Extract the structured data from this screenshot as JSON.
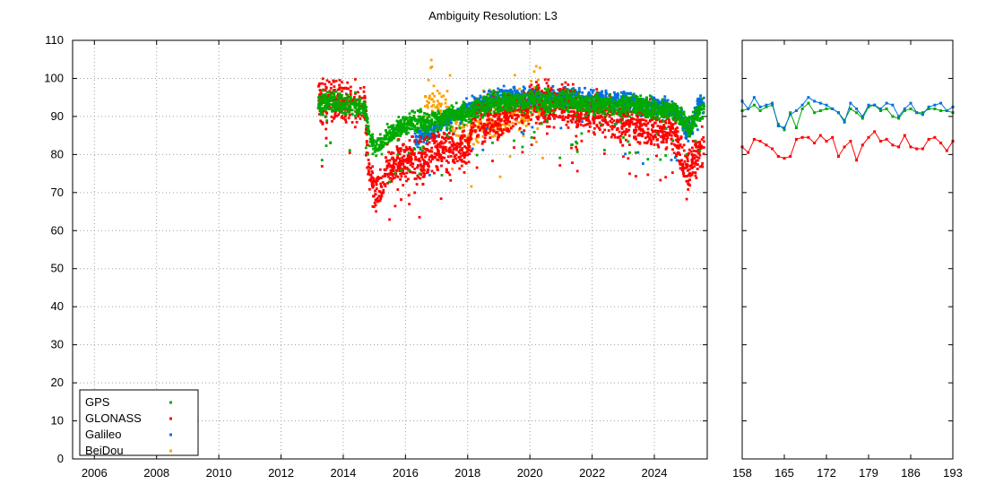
{
  "chart_data": [
    {
      "type": "scatter",
      "title": "Ambiguity Resolution: L3",
      "xlabel": "",
      "ylabel": "",
      "xlim": [
        2005.3,
        2025.7
      ],
      "ylim": [
        0,
        110
      ],
      "x_ticks": [
        2006,
        2008,
        2010,
        2012,
        2014,
        2016,
        2018,
        2020,
        2022,
        2024
      ],
      "y_ticks": [
        0,
        10,
        20,
        30,
        40,
        50,
        60,
        70,
        80,
        90,
        100,
        110
      ],
      "grid": true,
      "legend_position": "bottom-left",
      "series": [
        {
          "name": "GPS",
          "color": "#00aa00",
          "profile": [
            [
              2013.2,
              93
            ],
            [
              2013.6,
              94
            ],
            [
              2014.0,
              93
            ],
            [
              2014.4,
              93
            ],
            [
              2014.7,
              92
            ],
            [
              2014.85,
              84
            ],
            [
              2015.0,
              82
            ],
            [
              2015.3,
              84
            ],
            [
              2015.6,
              86
            ],
            [
              2016.0,
              88
            ],
            [
              2016.4,
              89
            ],
            [
              2016.7,
              88
            ],
            [
              2017.0,
              89
            ],
            [
              2017.5,
              90
            ],
            [
              2018.0,
              91
            ],
            [
              2018.5,
              93
            ],
            [
              2019.0,
              94
            ],
            [
              2019.5,
              94
            ],
            [
              2020.0,
              94
            ],
            [
              2020.5,
              94
            ],
            [
              2021.0,
              94
            ],
            [
              2021.5,
              94
            ],
            [
              2022.0,
              93
            ],
            [
              2022.5,
              93
            ],
            [
              2023.0,
              93
            ],
            [
              2023.5,
              93
            ],
            [
              2024.0,
              92
            ],
            [
              2024.5,
              92
            ],
            [
              2024.8,
              91
            ],
            [
              2025.0,
              88
            ],
            [
              2025.2,
              88
            ],
            [
              2025.4,
              91
            ],
            [
              2025.6,
              92
            ]
          ]
        },
        {
          "name": "GLONASS",
          "color": "#ff0000",
          "profile": [
            [
              2013.2,
              94
            ],
            [
              2013.6,
              94
            ],
            [
              2014.0,
              94
            ],
            [
              2014.4,
              93
            ],
            [
              2014.7,
              93
            ],
            [
              2014.8,
              76
            ],
            [
              2015.0,
              70
            ],
            [
              2015.2,
              72
            ],
            [
              2015.4,
              76
            ],
            [
              2015.8,
              78
            ],
            [
              2016.2,
              79
            ],
            [
              2016.5,
              78
            ],
            [
              2016.8,
              80
            ],
            [
              2017.2,
              82
            ],
            [
              2017.6,
              80
            ],
            [
              2018.0,
              82
            ],
            [
              2018.2,
              90
            ],
            [
              2018.6,
              89
            ],
            [
              2019.0,
              90
            ],
            [
              2019.5,
              92
            ],
            [
              2020.0,
              93
            ],
            [
              2020.5,
              93
            ],
            [
              2021.0,
              93
            ],
            [
              2021.5,
              92
            ],
            [
              2022.0,
              91
            ],
            [
              2022.5,
              90
            ],
            [
              2023.0,
              89
            ],
            [
              2023.5,
              88
            ],
            [
              2024.0,
              88
            ],
            [
              2024.4,
              87
            ],
            [
              2024.7,
              85
            ],
            [
              2025.0,
              76
            ],
            [
              2025.2,
              78
            ],
            [
              2025.4,
              80
            ],
            [
              2025.6,
              82
            ]
          ]
        },
        {
          "name": "Galileo",
          "color": "#0070e0",
          "profile": [
            [
              2016.3,
              84
            ],
            [
              2016.6,
              85
            ],
            [
              2017.0,
              87
            ],
            [
              2017.4,
              90
            ],
            [
              2017.8,
              91
            ],
            [
              2018.2,
              93
            ],
            [
              2018.6,
              94
            ],
            [
              2019.0,
              95
            ],
            [
              2019.5,
              95
            ],
            [
              2020.0,
              95
            ],
            [
              2020.5,
              95
            ],
            [
              2021.0,
              95
            ],
            [
              2021.5,
              95
            ],
            [
              2022.0,
              94
            ],
            [
              2022.5,
              94
            ],
            [
              2023.0,
              94
            ],
            [
              2023.5,
              93
            ],
            [
              2024.0,
              93
            ],
            [
              2024.5,
              92
            ],
            [
              2024.8,
              91
            ],
            [
              2025.0,
              86
            ],
            [
              2025.2,
              87
            ],
            [
              2025.4,
              93
            ],
            [
              2025.6,
              94
            ]
          ]
        },
        {
          "name": "BeiDou",
          "color": "#ffa000",
          "profile": [
            [
              2016.6,
              92
            ],
            [
              2016.9,
              95
            ],
            [
              2017.2,
              92
            ],
            [
              2017.6,
              88
            ],
            [
              2018.0,
              84
            ],
            [
              2018.3,
              87
            ],
            [
              2018.6,
              88
            ],
            [
              2019.0,
              88
            ],
            [
              2019.4,
              89
            ],
            [
              2019.8,
              90
            ],
            [
              2020.2,
              93
            ],
            [
              2020.6,
              94
            ]
          ]
        }
      ]
    },
    {
      "type": "line",
      "title": "",
      "xlabel": "",
      "ylabel": "",
      "xlim": [
        158,
        193
      ],
      "ylim": [
        0,
        110
      ],
      "x_ticks": [
        158,
        165,
        172,
        179,
        186,
        193
      ],
      "grid": false,
      "x": [
        158,
        159,
        160,
        161,
        162,
        163,
        164,
        165,
        166,
        167,
        168,
        169,
        170,
        171,
        172,
        173,
        174,
        175,
        176,
        177,
        178,
        179,
        180,
        181,
        182,
        183,
        184,
        185,
        186,
        187,
        188,
        189,
        190,
        191,
        192,
        193
      ],
      "series": [
        {
          "name": "GPS",
          "color": "#00aa00",
          "values": [
            91.5,
            92,
            93,
            91.5,
            92.5,
            93,
            88,
            86.5,
            91,
            87,
            92,
            93.5,
            91,
            91.5,
            92,
            92,
            91,
            89,
            92,
            91,
            89.5,
            92.5,
            93,
            91.5,
            92,
            90,
            89.5,
            91.5,
            92,
            91,
            91,
            92,
            92,
            91.5,
            91.5,
            91
          ]
        },
        {
          "name": "GLONASS",
          "color": "#ff0000",
          "values": [
            82,
            80.5,
            84,
            83.5,
            82.5,
            81.5,
            79.5,
            79,
            79.5,
            84,
            84.5,
            84.5,
            83,
            85,
            83.5,
            84.5,
            79.5,
            82,
            83.5,
            78.5,
            82.5,
            84.5,
            86,
            83.5,
            84,
            82.5,
            82,
            85,
            82,
            81.5,
            81.5,
            84,
            84.5,
            83,
            81,
            83.5
          ]
        },
        {
          "name": "Galileo",
          "color": "#0070e0",
          "values": [
            94,
            92,
            95,
            92.5,
            93,
            93.5,
            87.5,
            87,
            90.5,
            91.5,
            93,
            95,
            94,
            93.5,
            93,
            92,
            91,
            88.5,
            93.5,
            92,
            90,
            93,
            93,
            92,
            93.5,
            93,
            90,
            92,
            93.5,
            91,
            90.5,
            92.5,
            93,
            93.5,
            91.5,
            92.5
          ]
        }
      ]
    }
  ]
}
